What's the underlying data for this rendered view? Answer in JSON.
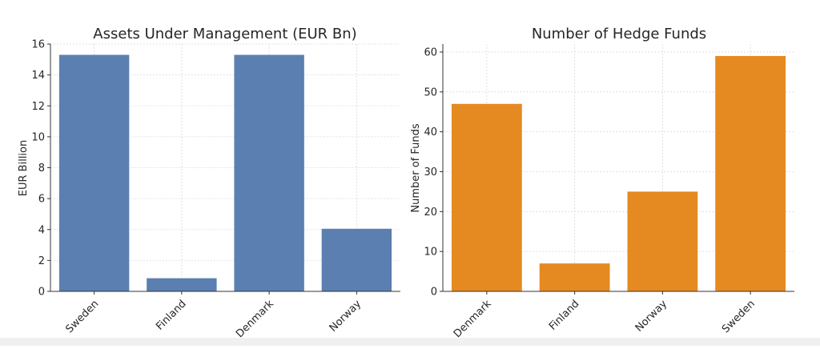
{
  "chart_data": [
    {
      "type": "bar",
      "title": "Assets Under Management (EUR Bn)",
      "xlabel": "",
      "ylabel": "EUR Billion",
      "categories": [
        "Sweden",
        "Finland",
        "Denmark",
        "Norway"
      ],
      "values": [
        15.3,
        0.85,
        15.3,
        4.05
      ],
      "ylim": [
        0,
        16
      ],
      "yticks": [
        "0",
        "2",
        "4",
        "6",
        "8",
        "10",
        "12",
        "14",
        "16"
      ],
      "grid": true,
      "color": "#5b7fb0"
    },
    {
      "type": "bar",
      "title": "Number of Hedge Funds",
      "xlabel": "",
      "ylabel": "Number of Funds",
      "categories": [
        "Denmark",
        "Finland",
        "Norway",
        "Sweden"
      ],
      "values": [
        47,
        7,
        25,
        59
      ],
      "ylim": [
        0,
        62
      ],
      "yticks": [
        "0",
        "10",
        "20",
        "30",
        "40",
        "50",
        "60"
      ],
      "grid": true,
      "color": "#e58a21"
    }
  ]
}
